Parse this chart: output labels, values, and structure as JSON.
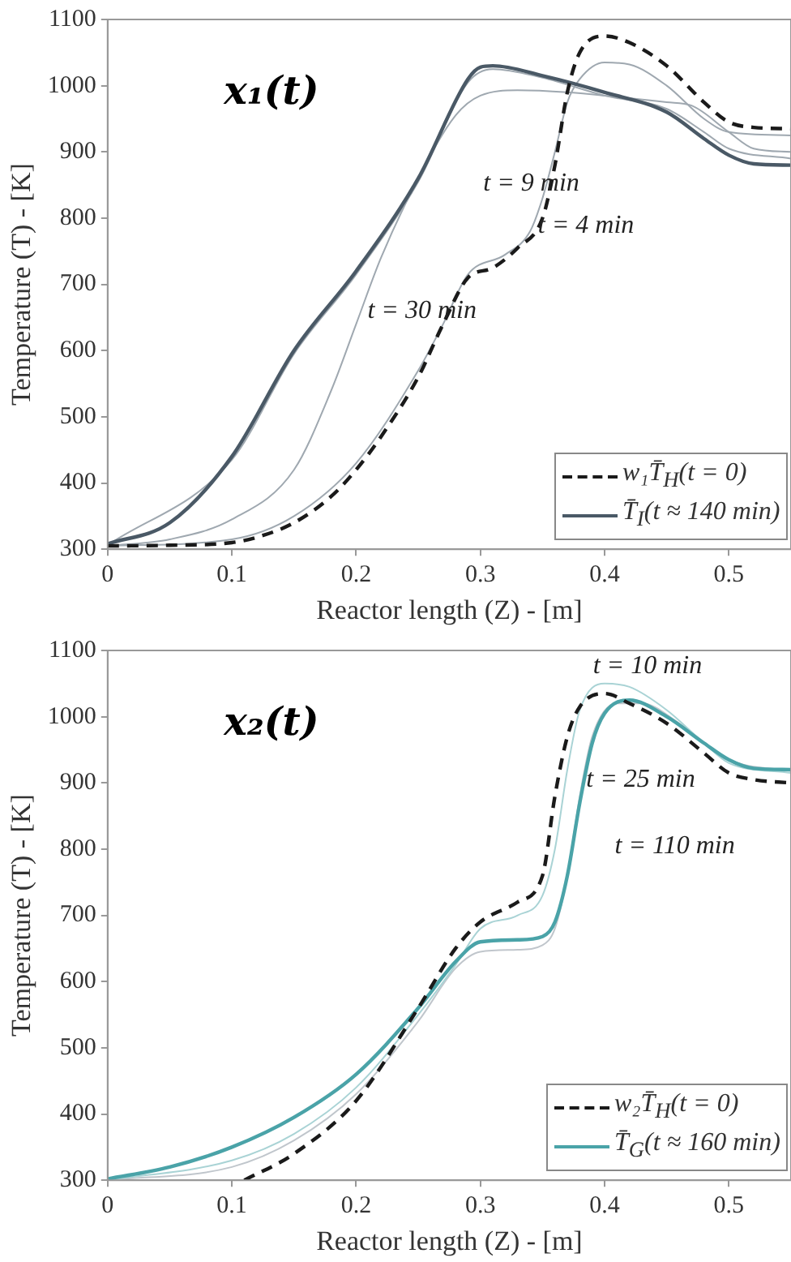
{
  "chart_data": [
    {
      "type": "line",
      "title": "x₁(t)",
      "xlabel": "Reactor length (Z) - [m]",
      "ylabel": "Temperature (T) - [K]",
      "xlim": [
        0,
        0.55
      ],
      "xticks": [
        0,
        0.1,
        0.2,
        0.3,
        0.4,
        0.5
      ],
      "ylim": [
        300,
        1100
      ],
      "yticks": [
        300,
        400,
        500,
        600,
        700,
        800,
        900,
        1000,
        1100
      ],
      "legend": "bottom right",
      "marker": "none",
      "series": [
        {
          "name": "w₁T̄$_{H}$(t = 0)",
          "color": "#1a1a1a",
          "line_style": "dashed",
          "x": [
            0,
            0.05,
            0.1,
            0.12,
            0.15,
            0.18,
            0.2,
            0.22,
            0.25,
            0.27,
            0.29,
            0.31,
            0.33,
            0.35,
            0.36,
            0.37,
            0.38,
            0.4,
            0.42,
            0.45,
            0.48,
            0.5,
            0.52,
            0.55
          ],
          "values": [
            305,
            306,
            310,
            318,
            340,
            380,
            420,
            470,
            560,
            640,
            710,
            725,
            755,
            800,
            880,
            990,
            1050,
            1075,
            1065,
            1030,
            975,
            945,
            937,
            935
          ]
        },
        {
          "name": "T̄$_{I}$(t ≈ 140 min)",
          "color": "#4a5966",
          "line_style": "solid",
          "x": [
            0,
            0.05,
            0.1,
            0.15,
            0.2,
            0.25,
            0.29,
            0.3,
            0.31,
            0.35,
            0.4,
            0.45,
            0.48,
            0.5,
            0.52,
            0.55
          ],
          "values": [
            308,
            340,
            440,
            600,
            720,
            860,
            1010,
            1028,
            1030,
            1015,
            990,
            960,
            920,
            895,
            882,
            880
          ]
        },
        {
          "color": "#9fa8b0",
          "line_style": "solid",
          "x": [
            0,
            0.1,
            0.15,
            0.2,
            0.25,
            0.29,
            0.31,
            0.35,
            0.4,
            0.45,
            0.48,
            0.5,
            0.55
          ],
          "values": [
            306,
            435,
            595,
            715,
            855,
            1005,
            1025,
            1012,
            985,
            965,
            930,
            905,
            890
          ]
        },
        {
          "color": "#9fa8b0",
          "line_style": "solid",
          "x": [
            0,
            0.05,
            0.1,
            0.15,
            0.18,
            0.2,
            0.22,
            0.25,
            0.28,
            0.3,
            0.33,
            0.37,
            0.4,
            0.45,
            0.47,
            0.5,
            0.52,
            0.55
          ],
          "values": [
            305,
            315,
            345,
            420,
            540,
            640,
            740,
            860,
            955,
            985,
            993,
            990,
            985,
            975,
            970,
            930,
            905,
            900
          ]
        },
        {
          "color": "#9fa8b0",
          "line_style": "solid",
          "x": [
            0,
            0.1,
            0.15,
            0.2,
            0.25,
            0.27,
            0.29,
            0.32,
            0.34,
            0.35,
            0.36,
            0.37,
            0.38,
            0.4,
            0.42,
            0.45,
            0.48,
            0.5,
            0.55
          ],
          "values": [
            305,
            315,
            350,
            430,
            570,
            640,
            715,
            745,
            780,
            830,
            900,
            975,
            1010,
            1035,
            1032,
            1000,
            950,
            930,
            925
          ]
        }
      ],
      "annotations": [
        "t = 9 min",
        "t = 4 min",
        "t = 30 min"
      ]
    },
    {
      "type": "line",
      "title": "x₂(t)",
      "xlabel": "Reactor length (Z) - [m]",
      "ylabel": "Temperature (T) - [K]",
      "xlim": [
        0,
        0.55
      ],
      "xticks": [
        0,
        0.1,
        0.2,
        0.3,
        0.4,
        0.5
      ],
      "ylim": [
        300,
        1100
      ],
      "yticks": [
        300,
        400,
        500,
        600,
        700,
        800,
        900,
        1000,
        1100
      ],
      "legend": "bottom right",
      "marker": "none",
      "series": [
        {
          "name": "w₂T̄$_{H}$(t = 0)",
          "color": "#1a1a1a",
          "line_style": "dashed",
          "x": [
            0.11,
            0.15,
            0.2,
            0.25,
            0.28,
            0.3,
            0.33,
            0.35,
            0.36,
            0.37,
            0.38,
            0.4,
            0.42,
            0.45,
            0.48,
            0.5,
            0.52,
            0.55
          ],
          "values": [
            300,
            340,
            420,
            560,
            650,
            690,
            720,
            760,
            880,
            970,
            1015,
            1035,
            1020,
            990,
            945,
            915,
            905,
            900
          ]
        },
        {
          "name": "T̄$_{G}$(t ≈ 160 min)",
          "color": "#4aa3a8",
          "line_style": "solid",
          "x": [
            0,
            0.05,
            0.1,
            0.15,
            0.2,
            0.25,
            0.28,
            0.3,
            0.33,
            0.35,
            0.36,
            0.37,
            0.38,
            0.39,
            0.4,
            0.42,
            0.45,
            0.48,
            0.5,
            0.52,
            0.55
          ],
          "values": [
            302,
            320,
            350,
            395,
            460,
            560,
            630,
            660,
            663,
            668,
            690,
            760,
            870,
            960,
            1005,
            1025,
            1000,
            960,
            935,
            922,
            920
          ]
        },
        {
          "color": "#a9d3d5",
          "line_style": "solid",
          "x": [
            0,
            0.1,
            0.15,
            0.2,
            0.25,
            0.28,
            0.3,
            0.33,
            0.35,
            0.36,
            0.37,
            0.38,
            0.4,
            0.42,
            0.45,
            0.48,
            0.5,
            0.55
          ],
          "values": [
            300,
            330,
            370,
            440,
            550,
            625,
            680,
            700,
            730,
            800,
            920,
            1010,
            1050,
            1045,
            1010,
            960,
            930,
            915
          ]
        },
        {
          "color": "#c0c6cc",
          "line_style": "solid",
          "x": [
            0,
            0.1,
            0.15,
            0.2,
            0.25,
            0.28,
            0.3,
            0.33,
            0.35,
            0.36,
            0.37,
            0.38,
            0.39,
            0.41,
            0.43,
            0.46,
            0.5,
            0.55
          ],
          "values": [
            300,
            320,
            360,
            430,
            540,
            620,
            645,
            648,
            655,
            680,
            760,
            880,
            970,
            1020,
            1020,
            990,
            935,
            918
          ]
        }
      ],
      "annotations": [
        "t = 10 min",
        "t = 25 min",
        "t = 110 min"
      ]
    }
  ]
}
